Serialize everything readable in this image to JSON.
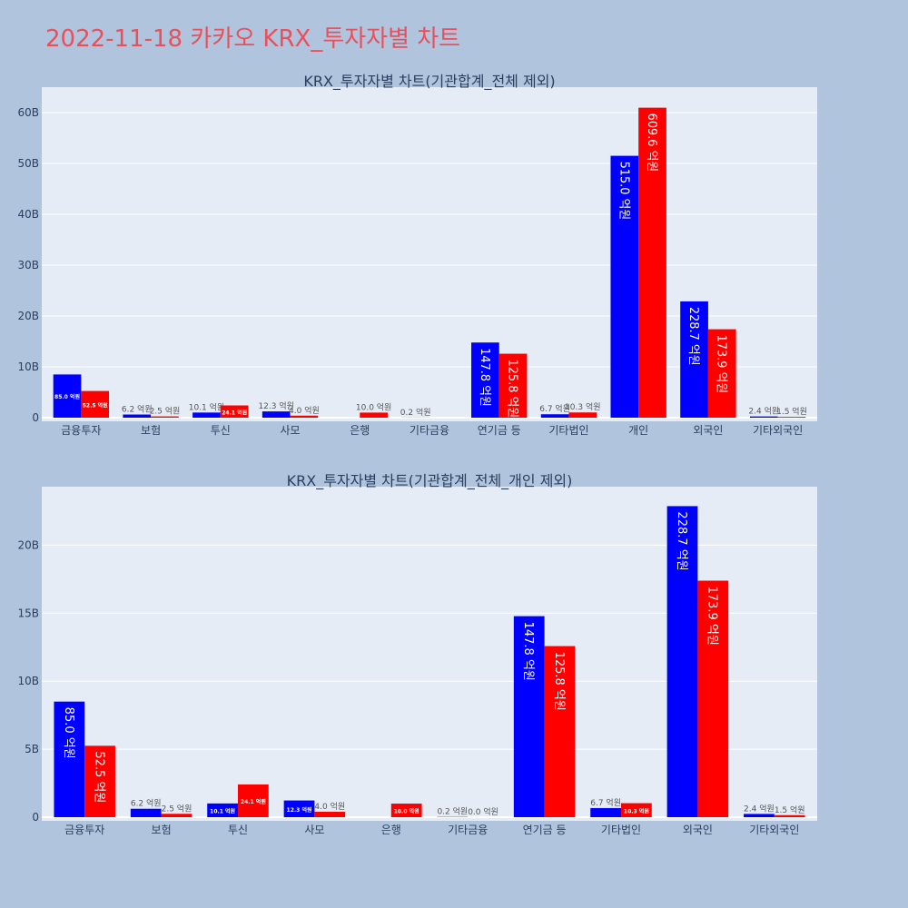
{
  "page": {
    "title": "2022-11-18 카카오 KRX_투자자별 차트"
  },
  "colors": {
    "background": "#b0c4de",
    "plot_bg": "#e5ecf6",
    "title": "#e8505b",
    "series_a": "#0000ff",
    "series_b": "#ff0000",
    "axis_text": "#2a3f5f"
  },
  "value_unit": "억원",
  "chart_data": [
    {
      "type": "bar",
      "title": "KRX_투자자별 차트(기관합계_전체 제외)",
      "categories": [
        "금융투자",
        "보험",
        "투신",
        "사모",
        "은행",
        "기타금융",
        "연기금 등",
        "기타법인",
        "개인",
        "외국인",
        "기타외국인"
      ],
      "series": [
        {
          "name": "series A",
          "color": "#0000ff",
          "values": [
            85.0,
            6.2,
            10.1,
            12.3,
            0,
            0.2,
            147.8,
            6.7,
            515.0,
            228.7,
            2.4
          ],
          "labels": [
            "85.0 억원",
            "6.2 억원",
            "10.1 억원",
            "12.3 억원",
            "",
            "0.2 억원",
            "147.8 억원",
            "6.7 억원",
            "515.0 억원",
            "228.7 억원",
            "2.4 억원"
          ]
        },
        {
          "name": "series B",
          "color": "#ff0000",
          "values": [
            52.5,
            2.5,
            24.1,
            4.0,
            10.0,
            0,
            125.8,
            10.3,
            609.6,
            173.9,
            1.5
          ],
          "labels": [
            "52.5 억원",
            "2.5 억원",
            "24.1 억원",
            "4.0 억원",
            "10.0 억원",
            "",
            "125.8 억원",
            "10.3 억원",
            "609.6 억원",
            "173.9 억원",
            "1.5 억원"
          ]
        }
      ],
      "ylim": [
        0,
        650
      ],
      "yticks": [
        0,
        100,
        200,
        300,
        400,
        500,
        600
      ],
      "ytick_labels": [
        "0",
        "10B",
        "20B",
        "30B",
        "40B",
        "50B",
        "60B"
      ],
      "grid": true,
      "legend": "none"
    },
    {
      "type": "bar",
      "title": "KRX_투자자별 차트(기관합계_전체_개인 제외)",
      "categories": [
        "금융투자",
        "보험",
        "투신",
        "사모",
        "은행",
        "기타금융",
        "연기금 등",
        "기타법인",
        "외국인",
        "기타외국인"
      ],
      "series": [
        {
          "name": "series A",
          "color": "#0000ff",
          "values": [
            85.0,
            6.2,
            10.1,
            12.3,
            0,
            0.2,
            147.8,
            6.7,
            228.7,
            2.4
          ],
          "labels": [
            "85.0 억원",
            "6.2 억원",
            "10.1 억원",
            "12.3 억원",
            "",
            "0.2 억원",
            "147.8 억원",
            "6.7 억원",
            "228.7 억원",
            "2.4 억원"
          ]
        },
        {
          "name": "series B",
          "color": "#ff0000",
          "values": [
            52.5,
            2.5,
            24.1,
            4.0,
            10.0,
            0.0,
            125.8,
            10.3,
            173.9,
            1.5
          ],
          "labels": [
            "52.5 억원",
            "2.5 억원",
            "24.1 억원",
            "4.0 억원",
            "10.0 억원",
            "0.0 억원",
            "125.8 억원",
            "10.3 억원",
            "173.9 억원",
            "1.5 억원"
          ]
        }
      ],
      "ylim": [
        0,
        243
      ],
      "yticks": [
        0,
        50,
        100,
        150,
        200
      ],
      "ytick_labels": [
        "0",
        "5B",
        "10B",
        "15B",
        "20B"
      ],
      "grid": true,
      "legend": "none"
    }
  ]
}
